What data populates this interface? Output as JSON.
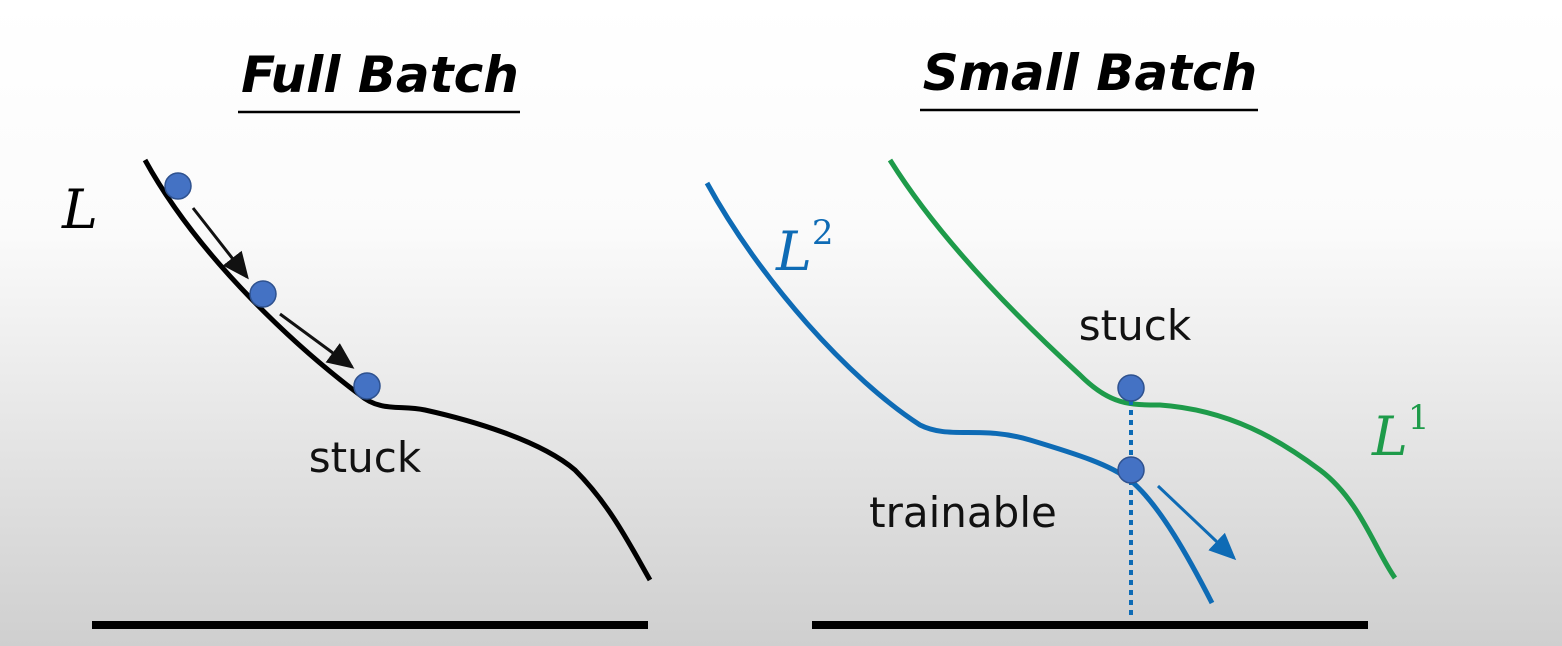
{
  "left": {
    "title": "Full Batch",
    "curve_label": "L",
    "annotation": "stuck"
  },
  "right": {
    "title": "Small Batch",
    "curves": [
      {
        "label": "L",
        "superscript": "2",
        "annotation": "trainable"
      },
      {
        "label": "L",
        "superscript": "1",
        "annotation": "stuck"
      }
    ]
  }
}
